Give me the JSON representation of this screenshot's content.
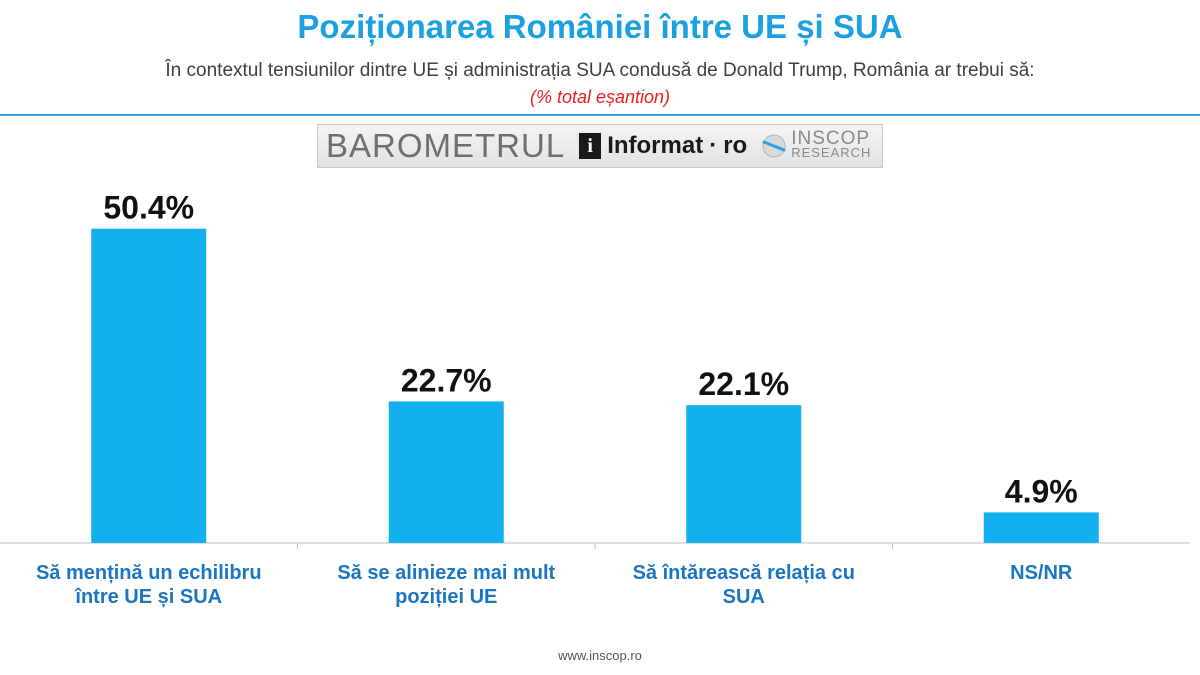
{
  "header": {
    "title": "Poziționarea României între UE și SUA",
    "subtitle": "În contextul tensiunilor dintre UE și administrația SUA condusă de Donald Trump, România ar trebui să:",
    "sample_note": "(% total eșantion)"
  },
  "logo": {
    "barometer": "BAROMETRUL",
    "informat": "Informat",
    "informat_dot": "·",
    "informat_tld": "ro",
    "informat_icon_letter": "i",
    "inscop_name": "INSCOP",
    "inscop_sub": "RESEARCH"
  },
  "colors": {
    "title": "#1ba1e2",
    "bar": "#12b0ef",
    "category_label": "#1a75c2",
    "sample_note": "#e8201e"
  },
  "chart_data": {
    "type": "bar",
    "categories": [
      [
        "Să mențină un echilibru",
        "între UE și SUA"
      ],
      [
        "Să se alinieze mai mult",
        "poziției UE"
      ],
      [
        "Să întărească relația cu",
        "SUA"
      ],
      [
        "NS/NR"
      ]
    ],
    "values": [
      50.4,
      22.7,
      22.1,
      4.9
    ],
    "value_labels": [
      "50.4%",
      "22.7%",
      "22.1%",
      "4.9%"
    ],
    "ylim": [
      0,
      55
    ],
    "grid": false,
    "legend": "none"
  },
  "footer": {
    "url": "www.inscop.ro"
  }
}
